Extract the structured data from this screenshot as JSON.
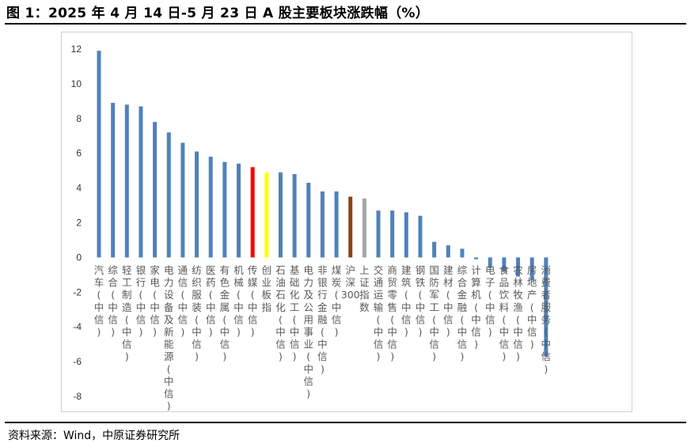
{
  "title": "图 1：2025 年 4 月 14 日-5 月 23 日 A 股主要板块涨跌幅（%）",
  "source": "资料来源：Wind，中原证券研究所",
  "colors": {
    "default_bar": "#4f81bd",
    "highlight_red": "#ff0000",
    "highlight_yellow": "#ffff00",
    "highlight_brown": "#8b4513",
    "highlight_gray": "#a6a6a6"
  },
  "chart_data": {
    "type": "bar",
    "title": "",
    "xlabel": "",
    "ylabel": "",
    "ylim": [
      -8,
      12
    ],
    "yticks": [
      12,
      10,
      8,
      6,
      4,
      2,
      0,
      -2,
      -4,
      -6,
      -8
    ],
    "grid": false,
    "legend": "none",
    "categories": [
      "汽车(中信)",
      "综合(中信)",
      "轻工制造(中信)",
      "银行(中信)",
      "家电(中信)",
      "电力设备及新能源(中信)",
      "通信(中信)",
      "纺织服装(中信)",
      "医药(中信)",
      "有色金属(中信)",
      "机械(中信)",
      "传媒(中信)",
      "创业板指",
      "石油石化(中信)",
      "基础化工(中信)",
      "电力及公用事业(中信)",
      "非银行金融(中信)",
      "煤炭(中信)",
      "沪深300",
      "上证指数",
      "交通运输(中信)",
      "商贸零售(中信)",
      "建筑(中信)",
      "钢铁(中信)",
      "国防军工(中信)",
      "建材(中信)",
      "综合金融(中信)",
      "计算机(中信)",
      "电子(中信)",
      "食品饮料(中信)",
      "农林牧渔(中信)",
      "房地产(中信)",
      "消费者服务(中信)"
    ],
    "values": [
      11.9,
      8.9,
      8.8,
      8.7,
      7.8,
      7.2,
      6.6,
      6.1,
      5.8,
      5.5,
      5.4,
      5.2,
      4.9,
      4.9,
      4.8,
      4.3,
      3.8,
      3.8,
      3.5,
      3.4,
      2.7,
      2.7,
      2.6,
      2.4,
      0.9,
      0.7,
      0.5,
      -0.1,
      -0.6,
      -0.8,
      -1.1,
      -1.3,
      -5.7
    ],
    "bar_colors": [
      "default",
      "default",
      "default",
      "default",
      "default",
      "default",
      "default",
      "default",
      "default",
      "default",
      "default",
      "red",
      "yellow",
      "default",
      "default",
      "default",
      "default",
      "default",
      "brown",
      "gray",
      "default",
      "default",
      "default",
      "default",
      "default",
      "default",
      "default",
      "default",
      "default",
      "default",
      "default",
      "default",
      "default"
    ]
  }
}
